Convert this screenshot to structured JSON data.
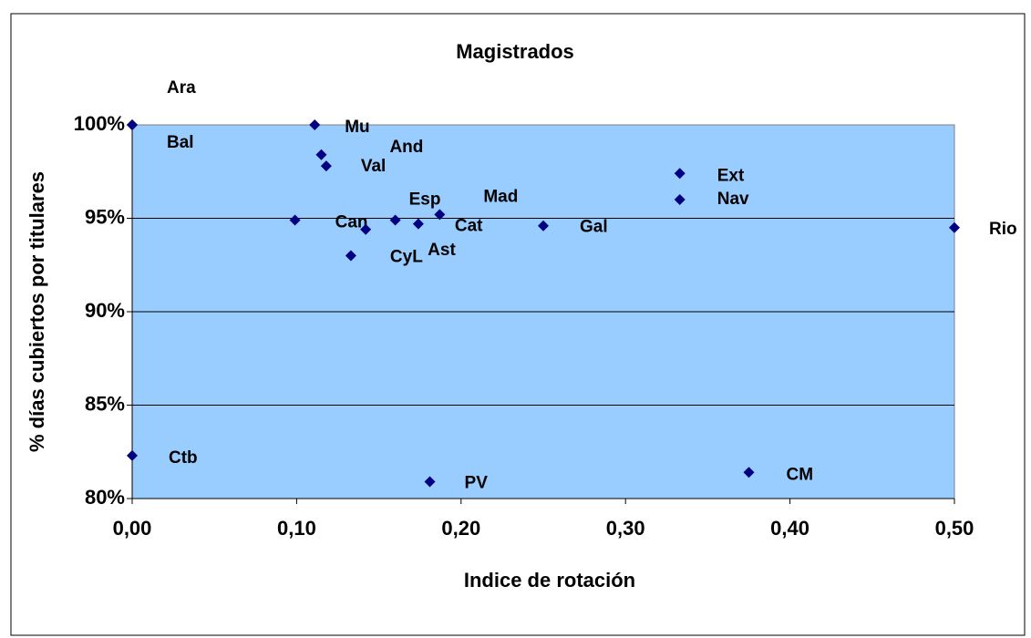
{
  "chart_data": {
    "type": "scatter",
    "title": "Magistrados",
    "x_label": "Indice de rotación",
    "y_label": "% días cubiertos por titulares",
    "labels": [
      "Ara",
      "Bal",
      "Mu",
      "And",
      "Val",
      "Ext",
      "Nav",
      "Esp",
      "Mad",
      "Can",
      "Cat",
      "Gal",
      "Ast",
      "Rio",
      "CyL",
      "Ctb",
      "PV",
      "CM"
    ],
    "x": [
      0,
      0,
      0.111,
      0.115,
      0.118,
      0.333,
      0.333,
      0.16,
      0.187,
      0.099,
      0.174,
      0.25,
      0.142,
      0.5,
      0.133,
      0,
      0.181,
      0.375
    ],
    "y": [
      100,
      100,
      100,
      98.4,
      97.8,
      97.4,
      96.0,
      94.9,
      95.2,
      94.9,
      94.7,
      94.6,
      94.4,
      94.5,
      93.0,
      82.3,
      80.9,
      81.4
    ],
    "color": "#000080",
    "plot_background": "#99ccff",
    "xlim": [
      0,
      0.5
    ],
    "ylim": [
      80,
      100
    ],
    "xticks": [
      {
        "value": 0,
        "label": "0,00"
      },
      {
        "value": 0.1,
        "label": "0,10"
      },
      {
        "value": 0.2,
        "label": "0,20"
      },
      {
        "value": 0.3,
        "label": "0,30"
      },
      {
        "value": 0.4,
        "label": "0,40"
      },
      {
        "value": 0.5,
        "label": "0,50"
      }
    ],
    "yticks": [
      {
        "value": 80,
        "label": "80%"
      },
      {
        "value": 85,
        "label": "85%"
      },
      {
        "value": 90,
        "label": "90%"
      },
      {
        "value": 95,
        "label": "95%"
      },
      {
        "value": 100,
        "label": "100%"
      }
    ],
    "grid": true
  }
}
